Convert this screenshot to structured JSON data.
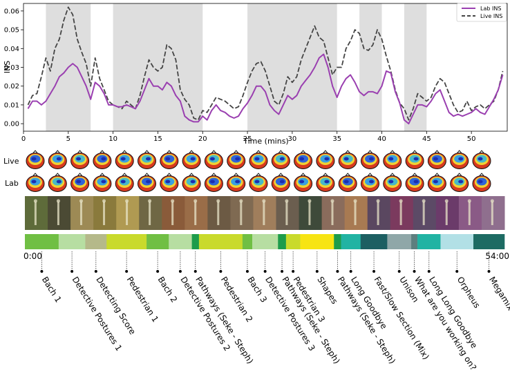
{
  "chart_data": {
    "type": "line",
    "title": "",
    "xlabel": "Time (mins)",
    "ylabel": "INS",
    "xlim": [
      0,
      54
    ],
    "ylim": [
      -0.004,
      0.064
    ],
    "x_ticks": [
      "0",
      "5",
      "10",
      "15",
      "20",
      "25",
      "30",
      "35",
      "40",
      "45",
      "50"
    ],
    "y_ticks": [
      "0.00",
      "0.01",
      "0.02",
      "0.03",
      "0.04",
      "0.05",
      "0.06"
    ],
    "shaded_intervals": [
      [
        2.5,
        7.5
      ],
      [
        10,
        20
      ],
      [
        25,
        35
      ],
      [
        37.5,
        40
      ],
      [
        42.5,
        45
      ]
    ],
    "legend_position": "top-right",
    "series": [
      {
        "name": "Lab INS",
        "color": "#9a3fb0",
        "dash": false,
        "x": [
          0.5,
          1,
          1.5,
          2,
          2.5,
          3,
          3.5,
          4,
          4.5,
          5,
          5.5,
          6,
          6.5,
          7,
          7.5,
          8,
          8.5,
          9,
          9.5,
          10,
          10.5,
          11,
          11.5,
          12,
          12.5,
          13,
          13.5,
          14,
          14.5,
          15,
          15.5,
          16,
          16.5,
          17,
          17.5,
          18,
          18.5,
          19,
          19.5,
          20,
          20.5,
          21,
          21.5,
          22,
          22.5,
          23,
          23.5,
          24,
          24.5,
          25,
          25.5,
          26,
          26.5,
          27,
          27.5,
          28,
          28.5,
          29,
          29.5,
          30,
          30.5,
          31,
          31.5,
          32,
          32.5,
          33,
          33.5,
          34,
          34.5,
          35,
          35.5,
          36,
          36.5,
          37,
          37.5,
          38,
          38.5,
          39,
          39.5,
          40,
          40.5,
          41,
          41.5,
          42,
          42.5,
          43,
          43.5,
          44,
          44.5,
          45,
          45.5,
          46,
          46.5,
          47,
          47.5,
          48,
          48.5,
          49,
          49.5,
          50,
          50.5,
          51,
          51.5,
          52,
          52.5,
          53,
          53.5
        ],
        "y": [
          0.008,
          0.012,
          0.012,
          0.01,
          0.012,
          0.016,
          0.02,
          0.025,
          0.027,
          0.03,
          0.032,
          0.03,
          0.025,
          0.02,
          0.013,
          0.022,
          0.02,
          0.016,
          0.01,
          0.01,
          0.009,
          0.009,
          0.01,
          0.009,
          0.008,
          0.012,
          0.018,
          0.024,
          0.02,
          0.02,
          0.018,
          0.022,
          0.02,
          0.015,
          0.012,
          0.004,
          0.002,
          0.001,
          0.001,
          0.004,
          0.002,
          0.007,
          0.01,
          0.007,
          0.006,
          0.004,
          0.003,
          0.004,
          0.008,
          0.011,
          0.015,
          0.02,
          0.02,
          0.017,
          0.01,
          0.007,
          0.005,
          0.01,
          0.015,
          0.013,
          0.015,
          0.02,
          0.023,
          0.026,
          0.03,
          0.035,
          0.037,
          0.03,
          0.02,
          0.014,
          0.02,
          0.024,
          0.026,
          0.022,
          0.017,
          0.015,
          0.017,
          0.017,
          0.016,
          0.02,
          0.028,
          0.027,
          0.017,
          0.011,
          0.002,
          0.0,
          0.005,
          0.01,
          0.01,
          0.009,
          0.012,
          0.016,
          0.018,
          0.012,
          0.006,
          0.004,
          0.005,
          0.004,
          0.005,
          0.006,
          0.008,
          0.006,
          0.005,
          0.009,
          0.013,
          0.018,
          0.026
        ]
      },
      {
        "name": "Live INS",
        "color": "#444444",
        "dash": true,
        "x": [
          0.5,
          1,
          1.5,
          2,
          2.5,
          3,
          3.5,
          4,
          4.5,
          5,
          5.5,
          6,
          6.5,
          7,
          7.5,
          8,
          8.5,
          9,
          9.5,
          10,
          10.5,
          11,
          11.5,
          12,
          12.5,
          13,
          13.5,
          14,
          14.5,
          15,
          15.5,
          16,
          16.5,
          17,
          17.5,
          18,
          18.5,
          19,
          19.5,
          20,
          20.5,
          21,
          21.5,
          22,
          22.5,
          23,
          23.5,
          24,
          24.5,
          25,
          25.5,
          26,
          26.5,
          27,
          27.5,
          28,
          28.5,
          29,
          29.5,
          30,
          30.5,
          31,
          31.5,
          32,
          32.5,
          33,
          33.5,
          34,
          34.5,
          35,
          35.5,
          36,
          36.5,
          37,
          37.5,
          38,
          38.5,
          39,
          39.5,
          40,
          40.5,
          41,
          41.5,
          42,
          42.5,
          43,
          43.5,
          44,
          44.5,
          45,
          45.5,
          46,
          46.5,
          47,
          47.5,
          48,
          48.5,
          49,
          49.5,
          50,
          50.5,
          51,
          51.5,
          52,
          52.5,
          53,
          53.5
        ],
        "y": [
          0.01,
          0.015,
          0.016,
          0.025,
          0.035,
          0.028,
          0.04,
          0.045,
          0.055,
          0.062,
          0.058,
          0.045,
          0.038,
          0.032,
          0.02,
          0.035,
          0.024,
          0.018,
          0.012,
          0.01,
          0.009,
          0.008,
          0.012,
          0.01,
          0.008,
          0.015,
          0.025,
          0.034,
          0.03,
          0.028,
          0.03,
          0.042,
          0.04,
          0.034,
          0.018,
          0.013,
          0.01,
          0.003,
          0.002,
          0.007,
          0.006,
          0.01,
          0.014,
          0.013,
          0.012,
          0.01,
          0.008,
          0.009,
          0.015,
          0.022,
          0.028,
          0.032,
          0.033,
          0.028,
          0.02,
          0.012,
          0.01,
          0.016,
          0.025,
          0.022,
          0.025,
          0.034,
          0.04,
          0.046,
          0.052,
          0.046,
          0.044,
          0.035,
          0.026,
          0.03,
          0.03,
          0.04,
          0.044,
          0.05,
          0.048,
          0.04,
          0.039,
          0.042,
          0.05,
          0.045,
          0.036,
          0.028,
          0.018,
          0.011,
          0.008,
          0.002,
          0.008,
          0.016,
          0.014,
          0.012,
          0.014,
          0.02,
          0.024,
          0.022,
          0.016,
          0.01,
          0.006,
          0.007,
          0.012,
          0.007,
          0.009,
          0.01,
          0.008,
          0.01,
          0.012,
          0.018,
          0.028
        ]
      }
    ]
  },
  "rows": {
    "live_label": "Live",
    "lab_label": "Lab"
  },
  "timeline": {
    "start_label": "0:00",
    "end_label": "54:00",
    "segments": [
      {
        "label": "Bach 1",
        "color": "#70bf44",
        "t0": 0,
        "t1": 3.8
      },
      {
        "label": "Detective Postures 1",
        "color": "#b7dea2",
        "t0": 3.8,
        "t1": 6.8
      },
      {
        "label": "Detecting Score",
        "color": "#b5b98a",
        "t0": 6.8,
        "t1": 9.2
      },
      {
        "label": "Pedestrian 1",
        "color": "#c9da2c",
        "t0": 9.2,
        "t1": 13.7
      },
      {
        "label": "Bach 2",
        "color": "#70bf44",
        "t0": 13.7,
        "t1": 16.2
      },
      {
        "label": "Detective Postures 2",
        "color": "#b7dea2",
        "t0": 16.2,
        "t1": 18.8
      },
      {
        "label": "Pathways (Seke - Steph)",
        "color": "#1d9c4b",
        "t0": 18.8,
        "t1": 19.6
      },
      {
        "label": "Pedestrian 2",
        "color": "#c9da2c",
        "t0": 19.6,
        "t1": 24.5
      },
      {
        "label": "Bach 3",
        "color": "#70bf44",
        "t0": 24.5,
        "t1": 25.6
      },
      {
        "label": "Detective Postures 3",
        "color": "#b7dea2",
        "t0": 25.6,
        "t1": 28.5
      },
      {
        "label": "Pathways (Seke - Steph)",
        "color": "#1d9c4b",
        "t0": 28.5,
        "t1": 29.4
      },
      {
        "label": "Pedestrian 3",
        "color": "#c9da2c",
        "t0": 29.4,
        "t1": 31.0
      },
      {
        "label": "Shapes",
        "color": "#f7e413",
        "t0": 31.0,
        "t1": 34.8
      },
      {
        "label": "Pathways (Seke - Steph)",
        "color": "#1d9c4b",
        "t0": 34.8,
        "t1": 35.6
      },
      {
        "label": "Long Goodbye",
        "color": "#21b3a3",
        "t0": 35.6,
        "t1": 37.8
      },
      {
        "label": "Fast/Slow Section (Mix)",
        "color": "#1d5f62",
        "t0": 37.8,
        "t1": 40.8
      },
      {
        "label": "Unison",
        "color": "#8fa7a8",
        "t0": 40.8,
        "t1": 43.5
      },
      {
        "label": "What are you working on?",
        "color": "#5d7f7f",
        "t0": 43.5,
        "t1": 44.2
      },
      {
        "label": "Long Long Goodbye",
        "color": "#21b3a3",
        "t0": 44.2,
        "t1": 46.8
      },
      {
        "label": "Orpheus",
        "color": "#b2e0e6",
        "t0": 46.8,
        "t1": 50.5
      },
      {
        "label": "Megamix",
        "color": "#1d6b63",
        "t0": 50.5,
        "t1": 54.0
      }
    ]
  }
}
